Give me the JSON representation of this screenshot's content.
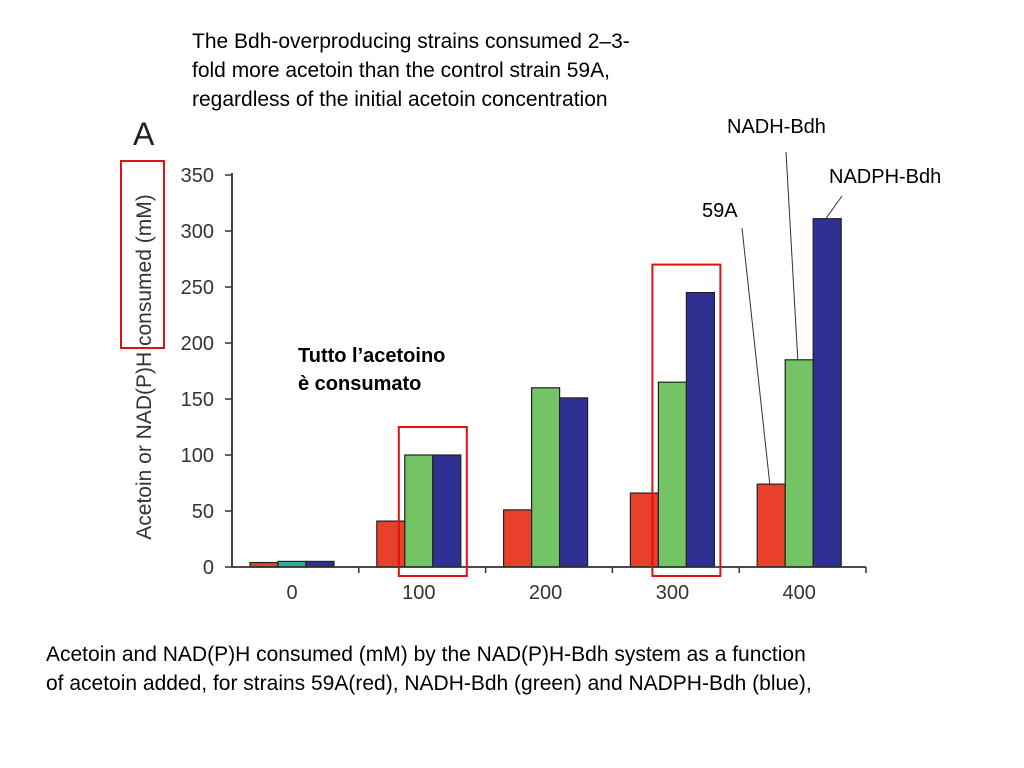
{
  "texts": {
    "top_caption_line1": "The Bdh-overproducing strains consumed 2–3-",
    "top_caption_line2": "fold more acetoin than the control strain 59A,",
    "top_caption_line3": "regardless of the initial acetoin concentration",
    "note_line1": "Tutto l’acetoino",
    "note_line2": "è consumato",
    "label_nadh": "NADH-Bdh",
    "label_nadph": "NADPH-Bdh",
    "label_59a": "59A",
    "bottom_caption_line1": "Acetoin and NAD(P)H consumed (mM) by the NAD(P)H-Bdh system as a function",
    "bottom_caption_line2": "of acetoin added, for strains 59A(red), NADH-Bdh (green) and NADPH-Bdh (blue),"
  },
  "chart_data": {
    "type": "bar",
    "panel_label": "A",
    "ylabel": "Acetoin or NAD(P)H consumed (mM)",
    "xlabel": "",
    "categories": [
      "0",
      "100",
      "200",
      "300",
      "400"
    ],
    "ylim": [
      0,
      350
    ],
    "yticks": [
      0,
      50,
      100,
      150,
      200,
      250,
      300,
      350
    ],
    "series": [
      {
        "name": "59A",
        "color": "#e8402a",
        "values": [
          4,
          41,
          51,
          66,
          74
        ]
      },
      {
        "name": "NADH-Bdh",
        "color": "#74c365",
        "values": [
          5,
          100,
          160,
          165,
          185
        ]
      },
      {
        "name": "NADPH-Bdh",
        "color": "#2e3192",
        "values": [
          5,
          100,
          151,
          245,
          311
        ]
      }
    ],
    "bar_colors_override": {
      "0": [
        "#e8402a",
        "#2fa89a",
        "#2e3192"
      ]
    },
    "highlight_color": "#dd1111",
    "highlighted_categories": [
      "100",
      "300"
    ],
    "grid": false,
    "legend": "none"
  }
}
